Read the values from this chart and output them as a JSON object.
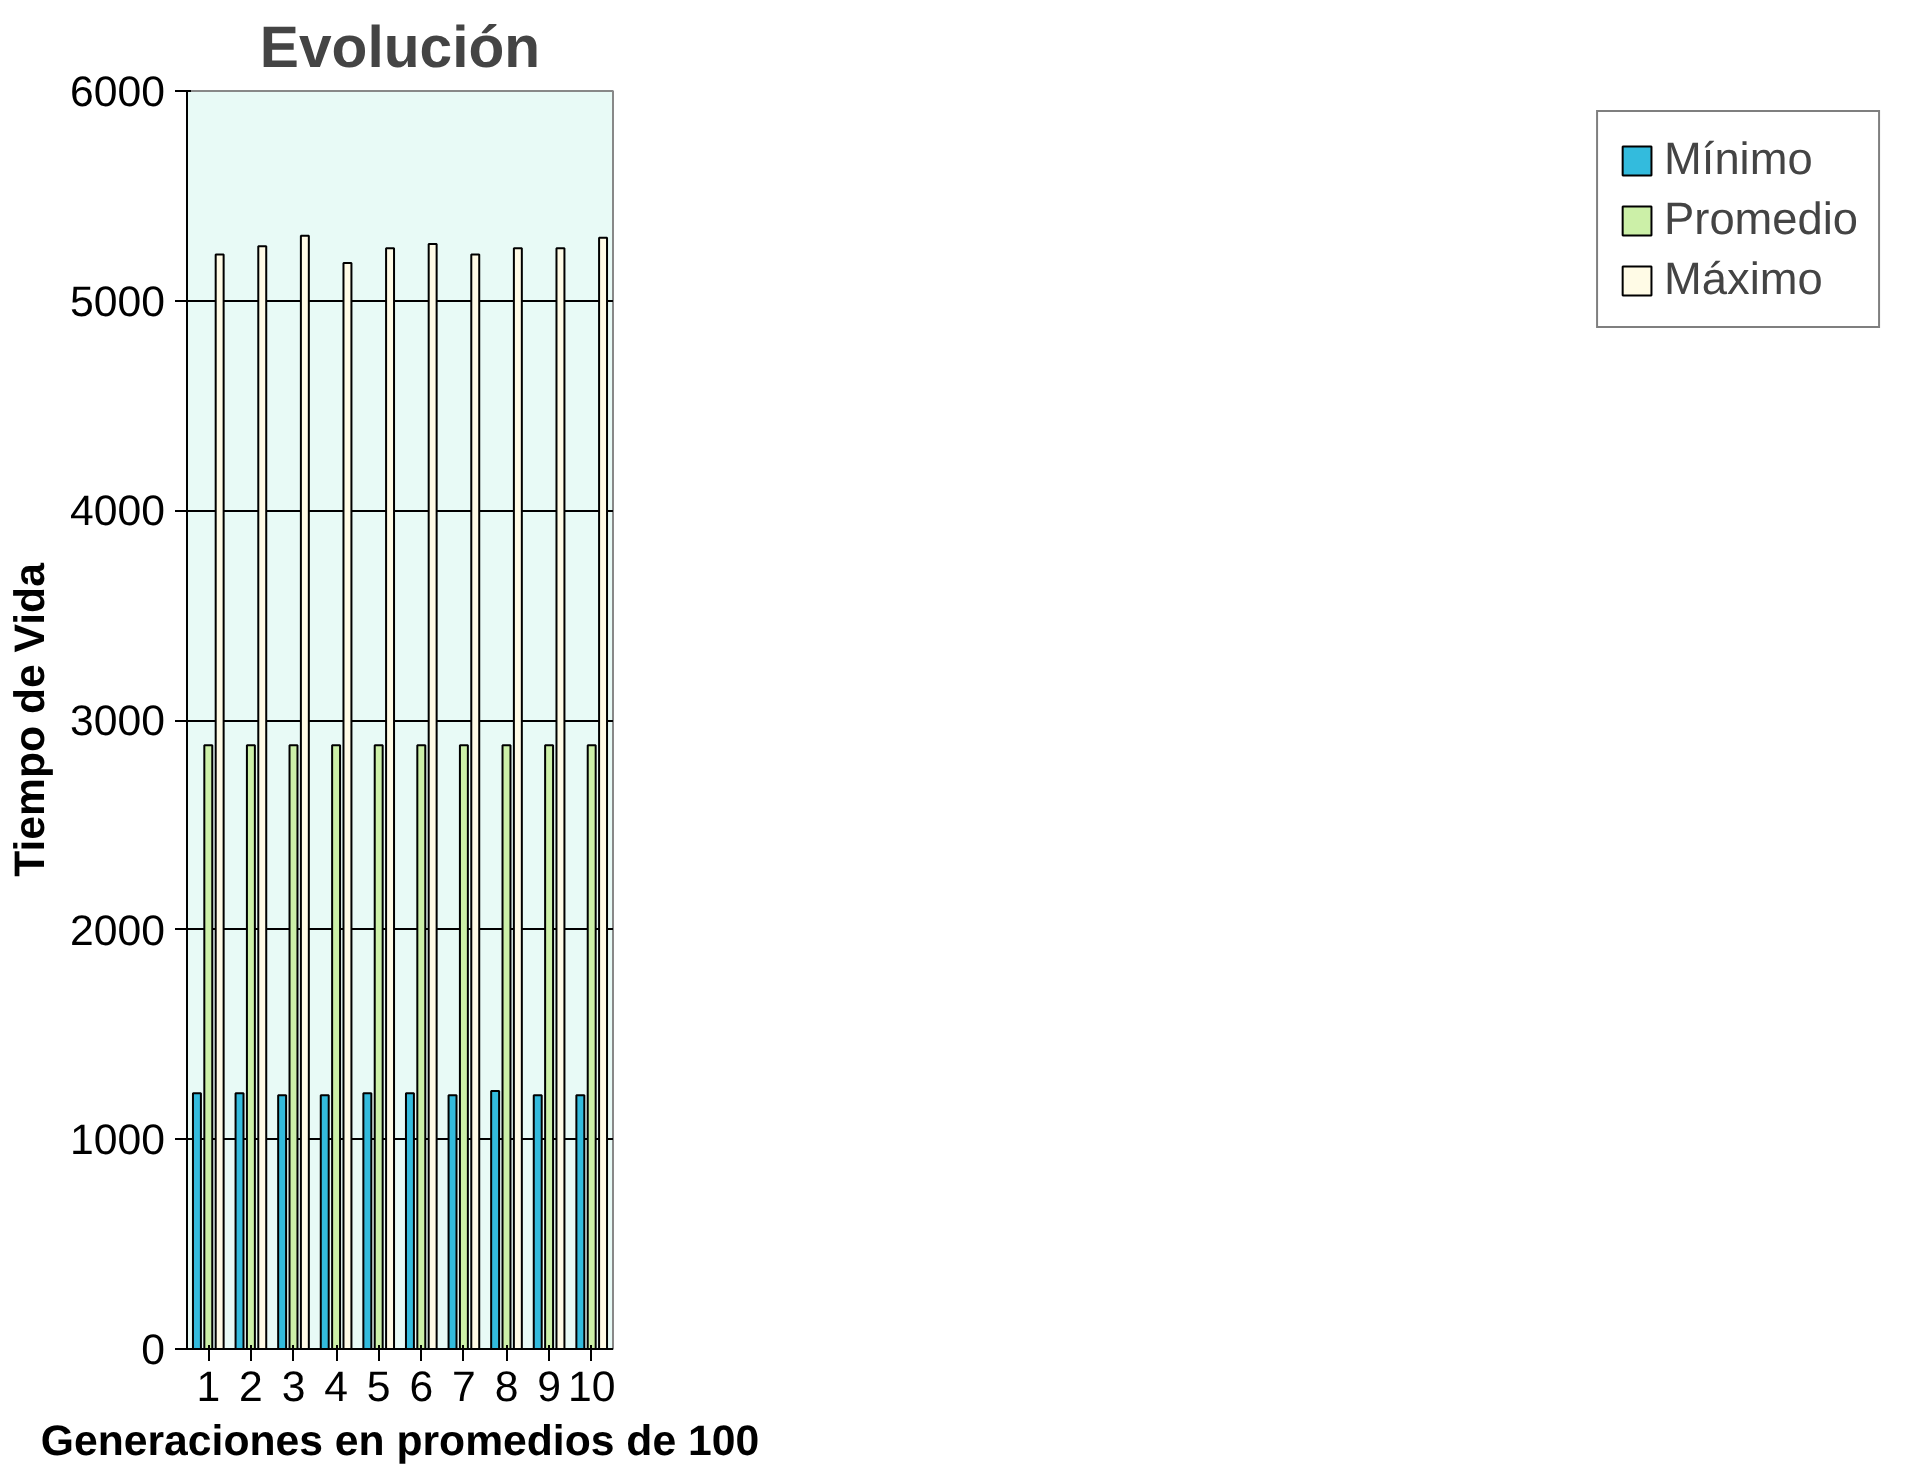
{
  "chart_data": {
    "type": "bar",
    "title": "Evolución",
    "xlabel": "Generaciones en promedios de 100",
    "ylabel": "Tiempo de Vida",
    "categories": [
      "1",
      "2",
      "3",
      "4",
      "5",
      "6",
      "7",
      "8",
      "9",
      "10"
    ],
    "series": [
      {
        "name": "Mínimo",
        "color": "#33bbdd",
        "values": [
          1220,
          1220,
          1210,
          1210,
          1220,
          1220,
          1210,
          1230,
          1210,
          1210
        ]
      },
      {
        "name": "Promedio",
        "color": "#ccf0a8",
        "values": [
          2880,
          2880,
          2880,
          2880,
          2880,
          2880,
          2880,
          2880,
          2880,
          2880
        ]
      },
      {
        "name": "Máximo",
        "color": "#fffbe6",
        "values": [
          5220,
          5260,
          5310,
          5180,
          5250,
          5270,
          5220,
          5250,
          5250,
          5300
        ]
      }
    ],
    "ylim": [
      0,
      6000
    ],
    "yticks": [
      0,
      1000,
      2000,
      3000,
      4000,
      5000,
      6000
    ],
    "grid": "y",
    "legend": "right"
  }
}
